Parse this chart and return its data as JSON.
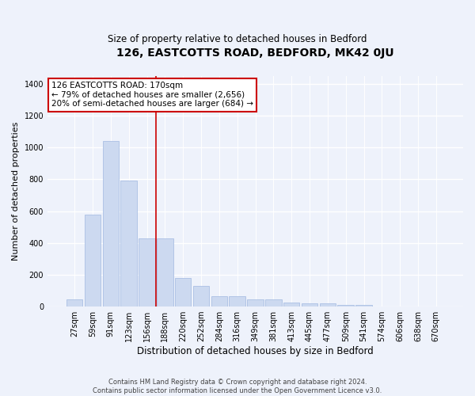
{
  "title": "126, EASTCOTTS ROAD, BEDFORD, MK42 0JU",
  "subtitle": "Size of property relative to detached houses in Bedford",
  "xlabel": "Distribution of detached houses by size in Bedford",
  "ylabel": "Number of detached properties",
  "bar_color": "#ccd9f0",
  "bar_edge_color": "#a0b8e0",
  "categories": [
    "27sqm",
    "59sqm",
    "91sqm",
    "123sqm",
    "156sqm",
    "188sqm",
    "220sqm",
    "252sqm",
    "284sqm",
    "316sqm",
    "349sqm",
    "381sqm",
    "413sqm",
    "445sqm",
    "477sqm",
    "509sqm",
    "541sqm",
    "574sqm",
    "606sqm",
    "638sqm",
    "670sqm"
  ],
  "values": [
    47,
    578,
    1040,
    790,
    430,
    430,
    180,
    130,
    65,
    65,
    47,
    47,
    25,
    22,
    18,
    12,
    8,
    0,
    0,
    0,
    0
  ],
  "vline_x": 4.5,
  "vline_color": "#cc0000",
  "annotation_text": "126 EASTCOTTS ROAD: 170sqm\n← 79% of detached houses are smaller (2,656)\n20% of semi-detached houses are larger (684) →",
  "annotation_box_color": "white",
  "annotation_box_edge": "#cc0000",
  "ylim": [
    0,
    1450
  ],
  "yticks": [
    0,
    200,
    400,
    600,
    800,
    1000,
    1200,
    1400
  ],
  "footer": "Contains HM Land Registry data © Crown copyright and database right 2024.\nContains public sector information licensed under the Open Government Licence v3.0.",
  "background_color": "#eef2fb",
  "grid_color": "#ffffff"
}
